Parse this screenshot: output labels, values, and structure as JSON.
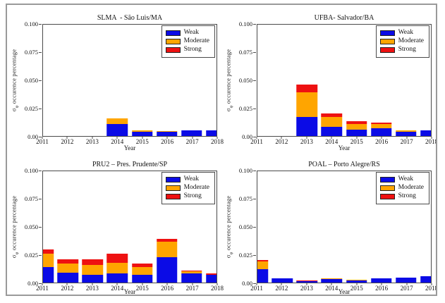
{
  "figure": {
    "background": "#ffffff",
    "border_color": "#9a9a9a"
  },
  "axes": {
    "ylabel": {
      "sigma": "σ",
      "subscript": "φ",
      "text": " occurence percentage"
    },
    "xlabel": "Year",
    "ymax": 0.1,
    "ytick_labels": [
      "0.100",
      "0.075",
      "0.050",
      "0.025",
      "0.00"
    ],
    "years": [
      "2011",
      "2012",
      "2013",
      "2014",
      "2015",
      "2016",
      "2017",
      "2018"
    ]
  },
  "legend": {
    "position": "top-right",
    "items": [
      {
        "label": "Weak",
        "color": "#0b0be6"
      },
      {
        "label": "Moderate",
        "color": "#ffa500"
      },
      {
        "label": "Strong",
        "color": "#ee1111"
      }
    ]
  },
  "chart_data": [
    {
      "type": "bar",
      "stacked": true,
      "title": "SLMA  - São Luis/MA",
      "xlabel": "Year",
      "ylabel": "σφ occurence percentage",
      "ylim": [
        0,
        0.1
      ],
      "grid": false,
      "legend_position": "upper right",
      "categories": [
        "2011",
        "2012",
        "2013",
        "2014",
        "2015",
        "2016",
        "2017",
        "2018"
      ],
      "series": [
        {
          "name": "Weak",
          "color": "#0b0be6",
          "values": [
            0,
            0,
            0,
            0.011,
            0.004,
            0.004,
            0.005,
            0.005
          ]
        },
        {
          "name": "Moderate",
          "color": "#ffa500",
          "values": [
            0,
            0,
            0,
            0.005,
            0.001,
            0.0005,
            0,
            0
          ]
        },
        {
          "name": "Strong",
          "color": "#ee1111",
          "values": [
            0,
            0,
            0,
            0,
            0,
            0,
            0,
            0
          ]
        }
      ]
    },
    {
      "type": "bar",
      "stacked": true,
      "title": "UFBA- Salvador/BA",
      "xlabel": "Year",
      "ylabel": "σφ occurence percentage",
      "ylim": [
        0,
        0.1
      ],
      "grid": false,
      "legend_position": "upper right",
      "categories": [
        "2011",
        "2012",
        "2013",
        "2014",
        "2015",
        "2016",
        "2017",
        "2018"
      ],
      "series": [
        {
          "name": "Weak",
          "color": "#0b0be6",
          "values": [
            0,
            0,
            0.017,
            0.008,
            0.006,
            0.007,
            0.004,
            0.005
          ]
        },
        {
          "name": "Moderate",
          "color": "#ffa500",
          "values": [
            0,
            0,
            0.022,
            0.009,
            0.005,
            0.004,
            0.001,
            0
          ]
        },
        {
          "name": "Strong",
          "color": "#ee1111",
          "values": [
            0,
            0,
            0.007,
            0.003,
            0.002,
            0.001,
            0,
            0
          ]
        }
      ]
    },
    {
      "type": "bar",
      "stacked": true,
      "title": "PRU2 – Pres. Prudente/SP",
      "xlabel": "Year",
      "ylabel": "σφ occurence percentage",
      "ylim": [
        0,
        0.1
      ],
      "grid": false,
      "legend_position": "upper right",
      "categories": [
        "2011",
        "2012",
        "2013",
        "2014",
        "2015",
        "2016",
        "2017",
        "2018"
      ],
      "series": [
        {
          "name": "Weak",
          "color": "#0b0be6",
          "values": [
            0.014,
            0.009,
            0.007,
            0.008,
            0.007,
            0.023,
            0.008,
            0.007
          ]
        },
        {
          "name": "Moderate",
          "color": "#ffa500",
          "values": [
            0.012,
            0.008,
            0.009,
            0.01,
            0.007,
            0.014,
            0.002,
            0
          ]
        },
        {
          "name": "Strong",
          "color": "#ee1111",
          "values": [
            0.004,
            0.004,
            0.005,
            0.008,
            0.003,
            0.002,
            0.001,
            0.001
          ]
        }
      ]
    },
    {
      "type": "bar",
      "stacked": true,
      "title": "POAL – Porto Alegre/RS",
      "xlabel": "Year",
      "ylabel": "σφ occurence percentage",
      "ylim": [
        0,
        0.1
      ],
      "grid": false,
      "legend_position": "upper right",
      "categories": [
        "2011",
        "2012",
        "2013",
        "2014",
        "2015",
        "2016",
        "2017",
        "2018"
      ],
      "series": [
        {
          "name": "Weak",
          "color": "#0b0be6",
          "values": [
            0.012,
            0.004,
            0.0015,
            0.003,
            0.002,
            0.0035,
            0.0045,
            0.006
          ]
        },
        {
          "name": "Moderate",
          "color": "#ffa500",
          "values": [
            0.007,
            0,
            0,
            0.001,
            0.0005,
            0,
            0,
            0
          ]
        },
        {
          "name": "Strong",
          "color": "#ee1111",
          "values": [
            0.001,
            0,
            0.0005,
            0,
            0,
            0,
            0,
            0
          ]
        }
      ]
    }
  ]
}
